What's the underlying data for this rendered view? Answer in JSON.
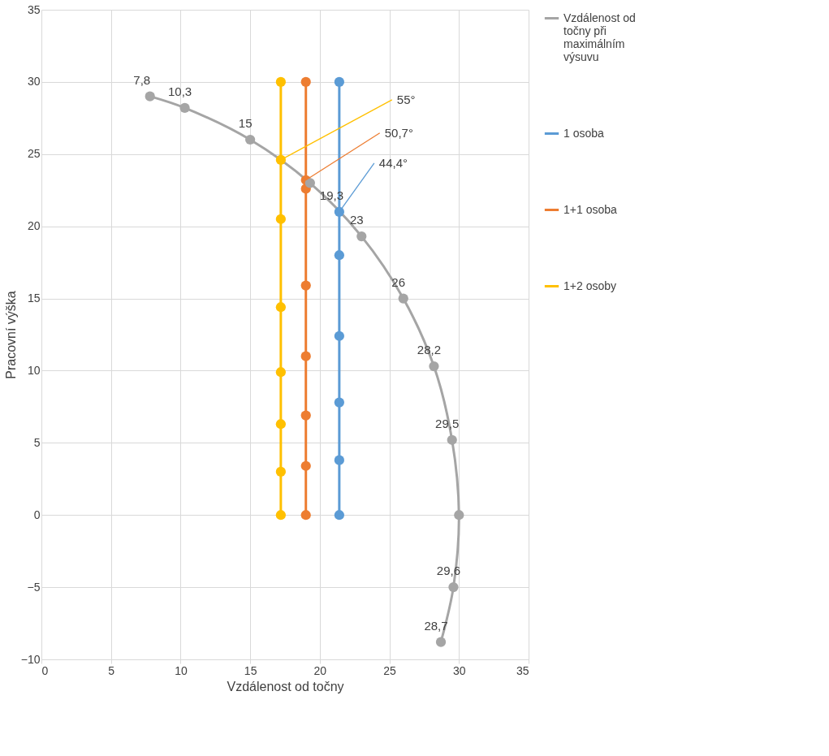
{
  "chart_data": {
    "type": "line",
    "xlabel": "Vzdálenost od točny",
    "ylabel": "Pracovní výška",
    "xlim": [
      0,
      35
    ],
    "xticks": [
      0,
      5,
      10,
      15,
      20,
      25,
      30,
      35
    ],
    "ylim": [
      -10,
      35
    ],
    "yticks": [
      -10,
      -5,
      0,
      5,
      10,
      15,
      20,
      25,
      30,
      35
    ],
    "grid": true,
    "legend": "right",
    "marker": "circle",
    "line_style": "solid",
    "series": [
      {
        "name": "Vzdálenost od točny při maximálním výsuvu",
        "color": "#a5a5a5",
        "x": [
          7.8,
          10.3,
          15,
          19.3,
          23,
          26,
          28.2,
          29.5,
          30,
          29.6,
          28.7
        ],
        "values": [
          29,
          28.2,
          26,
          23,
          19.3,
          15,
          10.3,
          5.2,
          0,
          -5,
          -8.8
        ]
      },
      {
        "name": "1 osoba",
        "color": "#5b9bd5",
        "x": [
          21.4,
          21.4,
          21.4,
          21.4,
          21.4,
          21.4,
          21.4
        ],
        "values": [
          30,
          21,
          18,
          12.4,
          7.8,
          3.8,
          0
        ]
      },
      {
        "name": "1+1 osoba",
        "color": "#ed7d31",
        "x": [
          19,
          19,
          19,
          19,
          19,
          19,
          19,
          19
        ],
        "values": [
          30,
          23.2,
          22.6,
          15.9,
          11,
          6.9,
          3.4,
          0
        ]
      },
      {
        "name": "1+2 osoby",
        "color": "#ffc000",
        "x": [
          17.2,
          17.2,
          17.2,
          17.2,
          17.2,
          17.2,
          17.2,
          17.2
        ],
        "values": [
          30,
          24.6,
          20.5,
          14.4,
          9.9,
          6.3,
          3,
          0
        ]
      }
    ],
    "annotations": [
      {
        "text": "7,8",
        "x": 7.8,
        "y": 29
      },
      {
        "text": "10,3",
        "x": 10.3,
        "y": 28.2
      },
      {
        "text": "15",
        "x": 15,
        "y": 26
      },
      {
        "text": "19,3",
        "x": 19.3,
        "y": 23
      },
      {
        "text": "23",
        "x": 23,
        "y": 19.3
      },
      {
        "text": "26",
        "x": 26,
        "y": 15
      },
      {
        "text": "28,2",
        "x": 28.2,
        "y": 10.3
      },
      {
        "text": "29,5",
        "x": 29.5,
        "y": 5.2
      },
      {
        "text": "29,6",
        "x": 29.6,
        "y": -5
      },
      {
        "text": "28,7",
        "x": 28.7,
        "y": -8.8
      },
      {
        "text": "55°",
        "x": 17.2,
        "y": 24.6
      },
      {
        "text": "50,7°",
        "x": 19,
        "y": 23.2
      },
      {
        "text": "44,4°",
        "x": 21.4,
        "y": 21
      }
    ]
  }
}
